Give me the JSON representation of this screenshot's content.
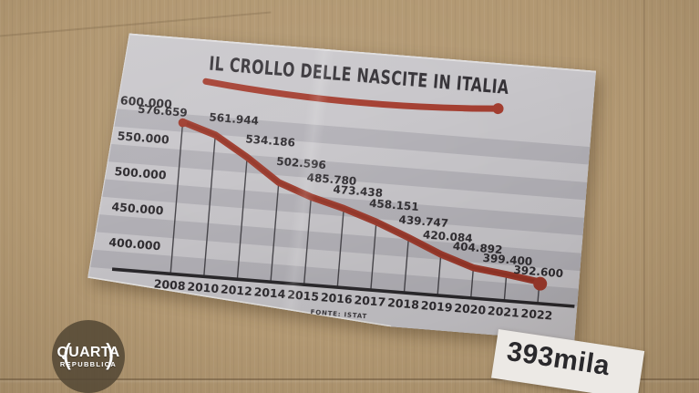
{
  "chart_data": {
    "type": "line",
    "title": "IL CROLLO DELLE NASCITE IN ITALIA",
    "source": "FONTE: ISTAT",
    "categories": [
      "2008",
      "2010",
      "2012",
      "2014",
      "2015",
      "2016",
      "2017",
      "2018",
      "2019",
      "2020",
      "2021",
      "2022"
    ],
    "values": [
      576659,
      561944,
      534186,
      502596,
      485780,
      473438,
      458151,
      439747,
      420084,
      404892,
      399400,
      392600
    ],
    "value_labels": [
      "576.659",
      "561.944",
      "534.186",
      "502.596",
      "485.780",
      "473.438",
      "458.151",
      "439.747",
      "420.084",
      "404.892",
      "399.400",
      "392.600"
    ],
    "y_ticks": [
      {
        "label": "600.000",
        "value": 600000
      },
      {
        "label": "550.000",
        "value": 550000
      },
      {
        "label": "500.000",
        "value": 500000
      },
      {
        "label": "450.000",
        "value": 450000
      },
      {
        "label": "400.000",
        "value": 400000
      }
    ],
    "ylim": [
      365000,
      612500
    ],
    "legend_position": "none",
    "background_bands": true,
    "drop_lines": true,
    "colors": {
      "line": "#9d392b",
      "line_core": "#8b2f21",
      "title_underline": "#a23a2c",
      "band_light": "#c7c5c9",
      "band_dark": "#b2b0b6",
      "text": "#2e2b2f",
      "axis": "#29272a",
      "drop_line": "#454348"
    }
  },
  "overlay": {
    "badge_393": "393mila",
    "logo": {
      "left_paren": "(",
      "title": "QUARTA",
      "subtitle": "REPUBBLICA",
      "right_paren": ")"
    }
  }
}
